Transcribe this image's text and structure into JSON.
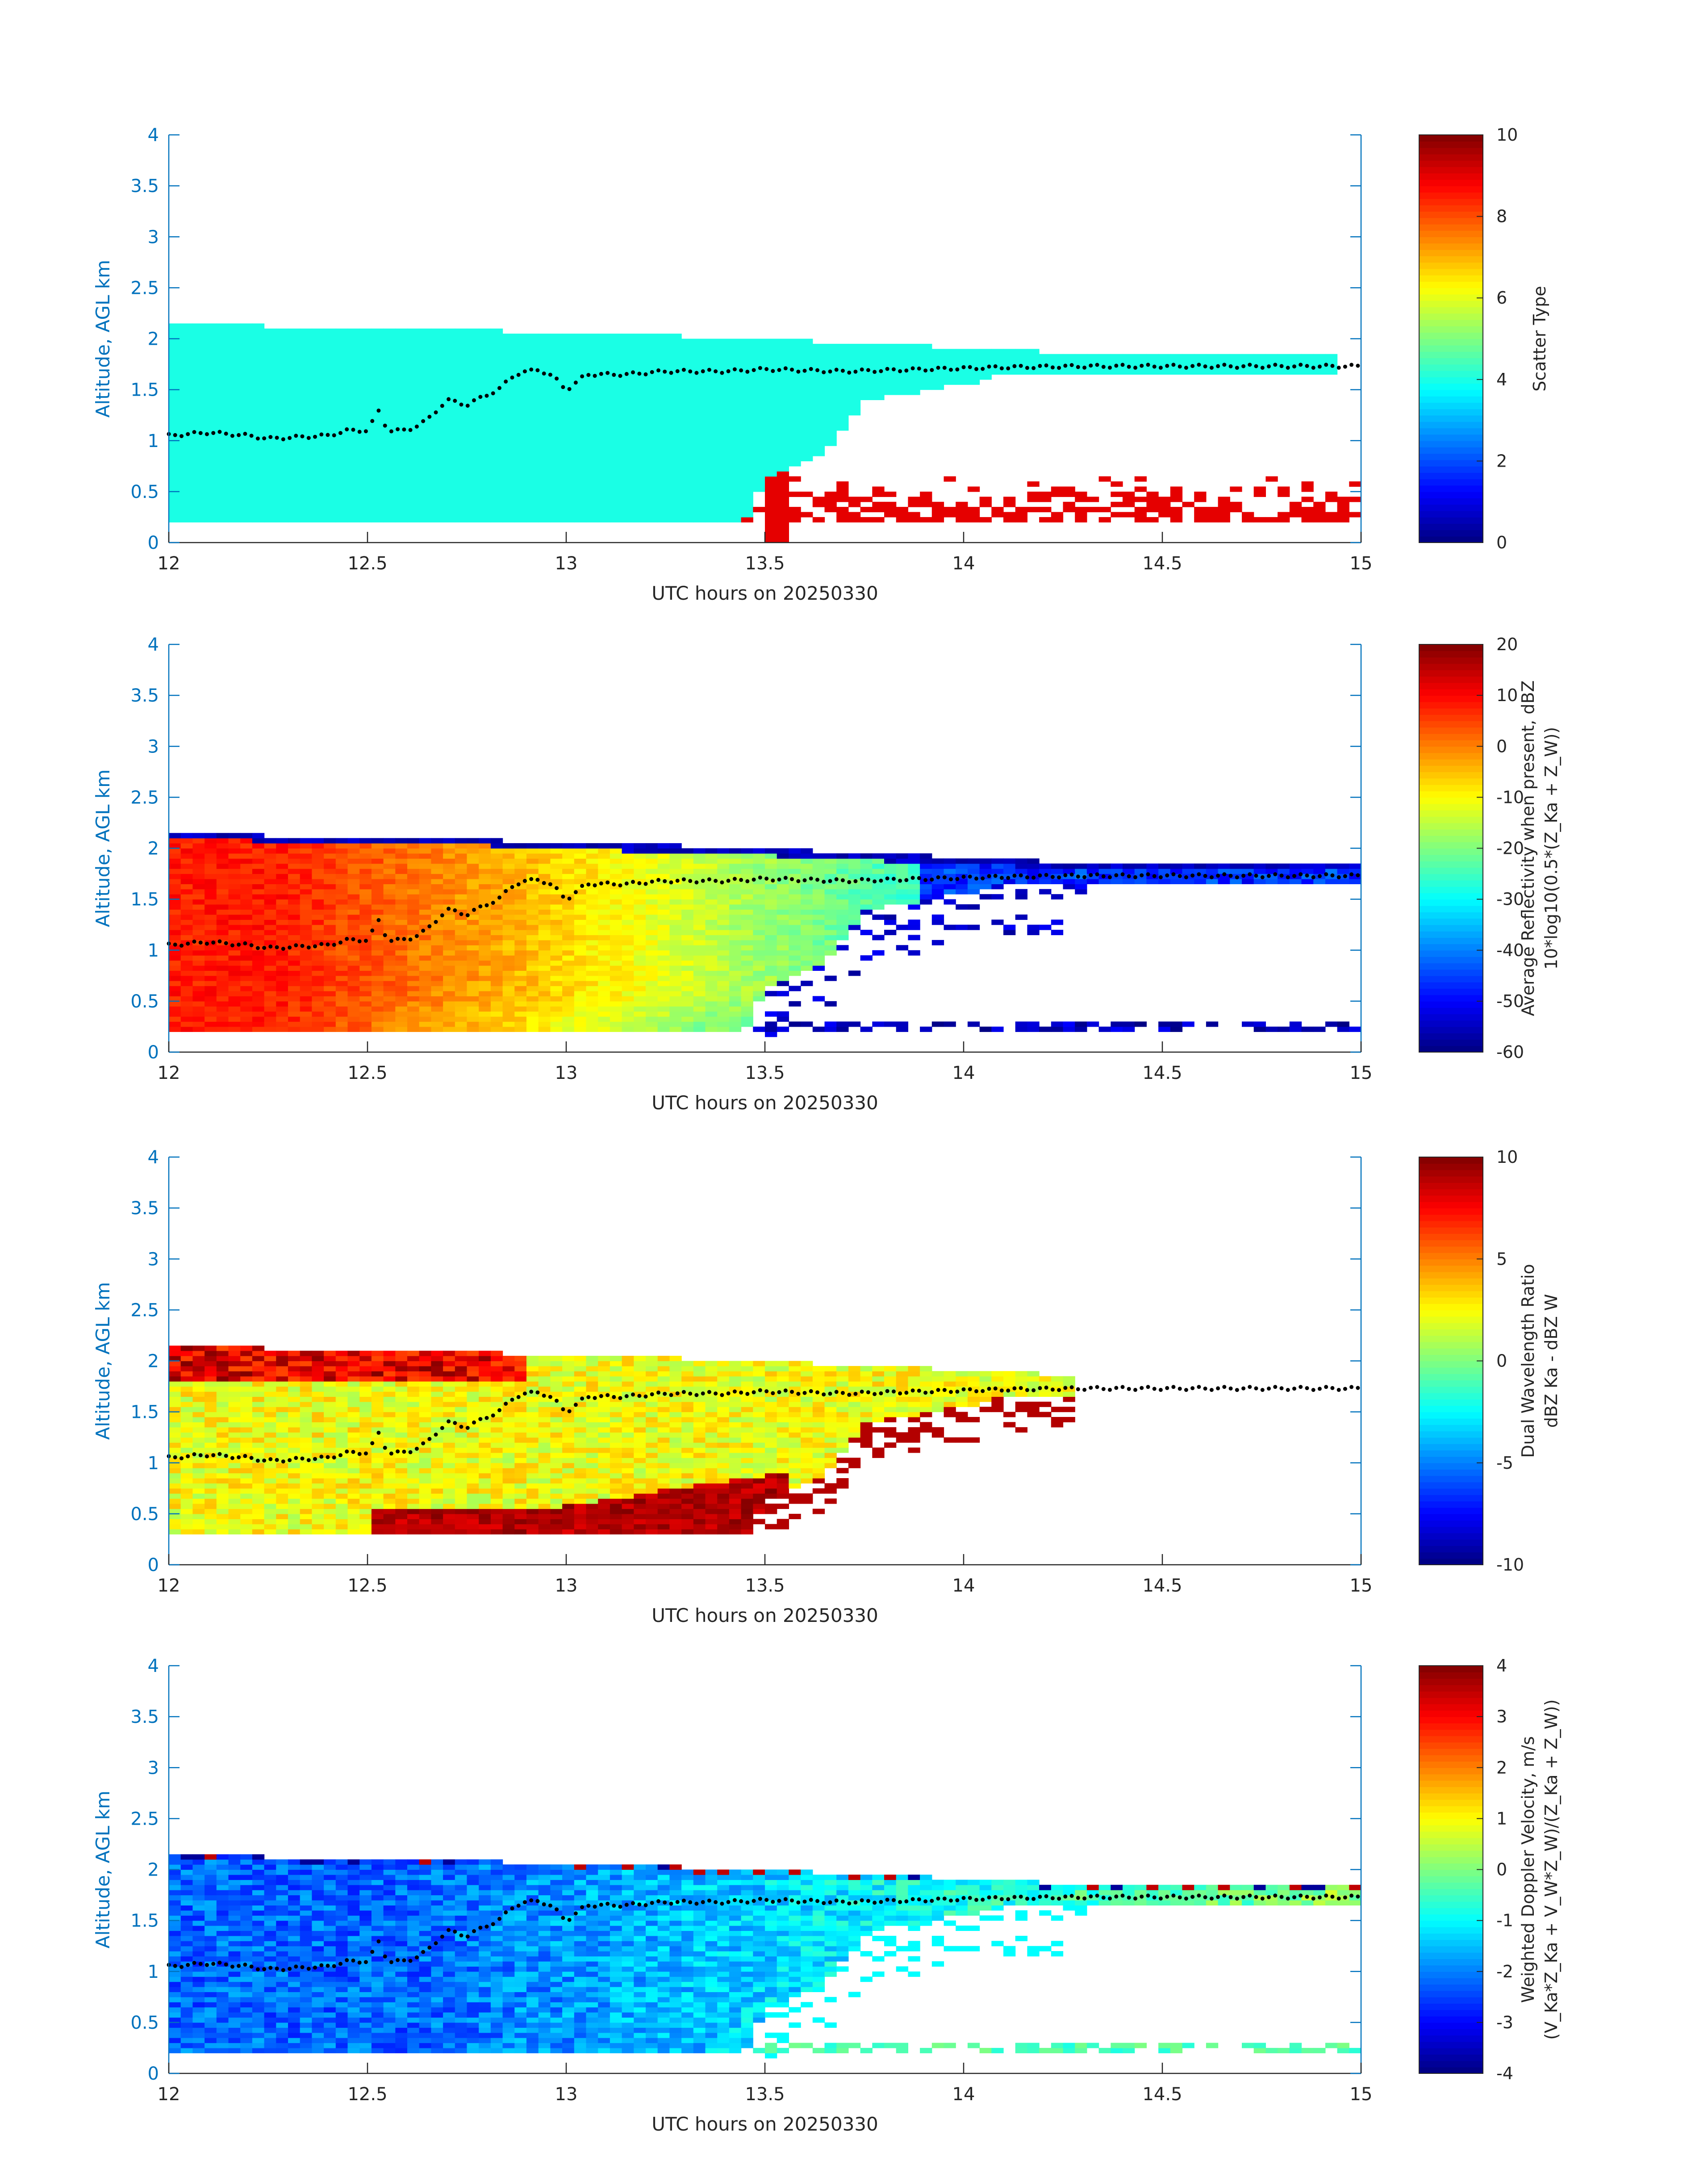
{
  "chart_data": [
    {
      "type": "heatmap",
      "id": "scatter-type",
      "xlabel": "UTC hours on 20250330",
      "ylabel": "Altitude, AGL km",
      "xlim": [
        12,
        15
      ],
      "ylim": [
        0,
        4
      ],
      "xticks": [
        "12",
        "12.5",
        "13",
        "13.5",
        "14",
        "14.5",
        "15"
      ],
      "yticks": [
        "0",
        "0.5",
        "1",
        "1.5",
        "2",
        "2.5",
        "3",
        "3.5",
        "4"
      ],
      "colorbar": {
        "label_lines": [
          "Scatter Type"
        ],
        "clim": [
          0,
          10
        ],
        "ticks": [
          "0",
          "2",
          "4",
          "6",
          "8",
          "10"
        ],
        "colormap": "jet"
      },
      "field": "scatter"
    },
    {
      "type": "heatmap",
      "id": "reflectivity",
      "xlabel": "UTC hours on 20250330",
      "ylabel": "Altitude, AGL km",
      "xlim": [
        12,
        15
      ],
      "ylim": [
        0,
        4
      ],
      "xticks": [
        "12",
        "12.5",
        "13",
        "13.5",
        "14",
        "14.5",
        "15"
      ],
      "yticks": [
        "0",
        "0.5",
        "1",
        "1.5",
        "2",
        "2.5",
        "3",
        "3.5",
        "4"
      ],
      "colorbar": {
        "label_lines": [
          "Average Reflectivity when present, dBZ",
          "10*log10(0.5*(Z_Ka + Z_W))"
        ],
        "clim": [
          -60,
          20
        ],
        "ticks": [
          "-60",
          "-50",
          "-40",
          "-30",
          "-20",
          "-10",
          "0",
          "10",
          "20"
        ],
        "colormap": "jet"
      },
      "field": "refl"
    },
    {
      "type": "heatmap",
      "id": "dual-wavelength-ratio",
      "xlabel": "UTC hours on 20250330",
      "ylabel": "Altitude, AGL km",
      "xlim": [
        12,
        15
      ],
      "ylim": [
        0,
        4
      ],
      "xticks": [
        "12",
        "12.5",
        "13",
        "13.5",
        "14",
        "14.5",
        "15"
      ],
      "yticks": [
        "0",
        "0.5",
        "1",
        "1.5",
        "2",
        "2.5",
        "3",
        "3.5",
        "4"
      ],
      "colorbar": {
        "label_lines": [
          "Dual Wavelength Ratio",
          "dBZ Ka - dBZ W"
        ],
        "clim": [
          -10,
          10
        ],
        "ticks": [
          "-10",
          "-5",
          "0",
          "5",
          "10"
        ],
        "colormap": "jet"
      },
      "field": "dwr"
    },
    {
      "type": "heatmap",
      "id": "doppler-velocity",
      "xlabel": "UTC hours on 20250330",
      "ylabel": "Altitude, AGL km",
      "xlim": [
        12,
        15
      ],
      "ylim": [
        0,
        4
      ],
      "xticks": [
        "12",
        "12.5",
        "13",
        "13.5",
        "14",
        "14.5",
        "15"
      ],
      "yticks": [
        "0",
        "0.5",
        "1",
        "1.5",
        "2",
        "2.5",
        "3",
        "3.5",
        "4"
      ],
      "colorbar": {
        "label_lines": [
          "Weighted Doppler Velocity, m/s",
          "(V_Ka*Z_Ka + V_W*Z_W)/(Z_Ka + Z_W))"
        ],
        "clim": [
          -4,
          4
        ],
        "ticks": [
          "-4",
          "-3",
          "-2",
          "-1",
          "0",
          "1",
          "2",
          "3",
          "4"
        ],
        "colormap": "jet"
      },
      "field": "vel"
    }
  ],
  "cloud": {
    "top_km": [
      [
        12.0,
        2.16
      ],
      [
        12.22,
        2.16
      ],
      [
        12.23,
        2.1
      ],
      [
        12.82,
        2.1
      ],
      [
        12.83,
        2.05
      ],
      [
        13.1,
        2.05
      ],
      [
        13.5,
        2.0
      ],
      [
        13.75,
        1.95
      ],
      [
        14.1,
        1.9
      ],
      [
        14.3,
        1.85
      ],
      [
        14.95,
        1.85
      ]
    ],
    "base_km": [
      [
        12.0,
        0.2
      ],
      [
        13.45,
        0.2
      ],
      [
        13.5,
        0.6
      ],
      [
        13.65,
        0.9
      ],
      [
        13.76,
        1.4
      ],
      [
        14.0,
        1.55
      ],
      [
        14.1,
        1.65
      ],
      [
        14.3,
        1.65
      ],
      [
        14.95,
        1.65
      ]
    ],
    "near_surface_band_km": [
      0.2,
      0.3
    ]
  },
  "overlay_dots": {
    "description": "black dot series (cloud-base estimate)",
    "points": [
      [
        12.0,
        1.05
      ],
      [
        12.1,
        1.08
      ],
      [
        12.2,
        1.05
      ],
      [
        12.25,
        1.02
      ],
      [
        12.4,
        1.05
      ],
      [
        12.45,
        1.1
      ],
      [
        12.5,
        1.1
      ],
      [
        12.53,
        1.3
      ],
      [
        12.55,
        1.1
      ],
      [
        12.6,
        1.1
      ],
      [
        12.65,
        1.2
      ],
      [
        12.7,
        1.4
      ],
      [
        12.75,
        1.35
      ],
      [
        12.8,
        1.45
      ],
      [
        12.83,
        1.5
      ],
      [
        12.87,
        1.65
      ],
      [
        12.93,
        1.7
      ],
      [
        12.97,
        1.62
      ],
      [
        13.0,
        1.5
      ],
      [
        13.02,
        1.55
      ],
      [
        13.05,
        1.65
      ],
      [
        13.15,
        1.65
      ],
      [
        13.25,
        1.68
      ],
      [
        13.4,
        1.68
      ],
      [
        13.5,
        1.7
      ],
      [
        13.7,
        1.68
      ],
      [
        13.9,
        1.7
      ],
      [
        14.1,
        1.72
      ],
      [
        14.3,
        1.73
      ],
      [
        14.5,
        1.73
      ],
      [
        14.7,
        1.73
      ],
      [
        14.9,
        1.73
      ],
      [
        15.0,
        1.73
      ]
    ]
  }
}
